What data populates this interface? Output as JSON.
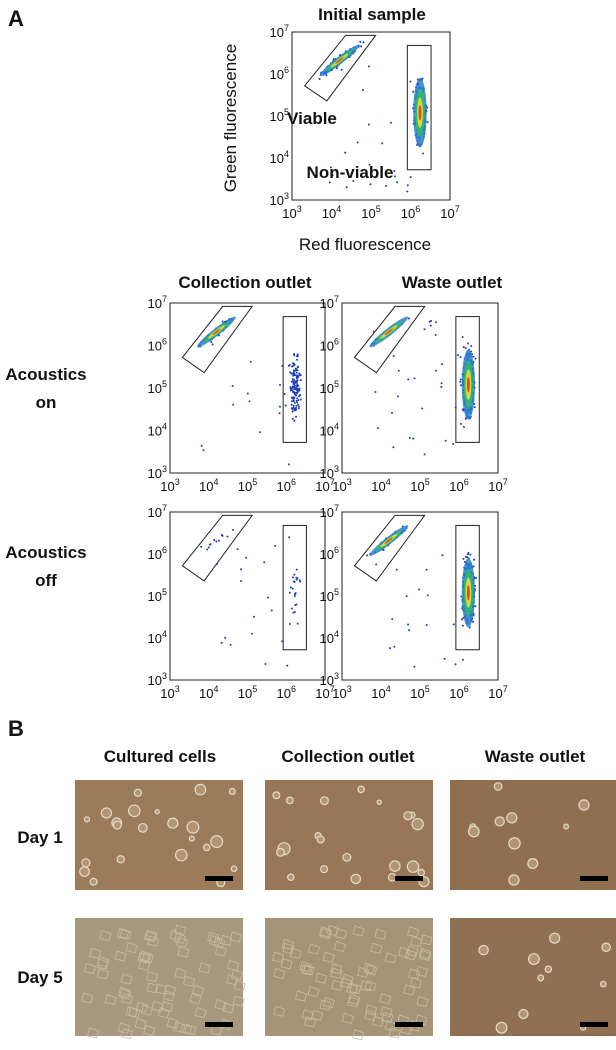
{
  "panel_a": {
    "label": "A",
    "initial": {
      "title": "Initial sample",
      "x_label": "Red fluorescence",
      "y_label": "Green fluorescence",
      "gate_labels": [
        "Viable",
        "Non-viable"
      ]
    },
    "column_titles": [
      "Collection outlet",
      "Waste outlet"
    ],
    "row_labels": [
      [
        "Acoustics",
        "on"
      ],
      [
        "Acoustics",
        "off"
      ]
    ],
    "tick_base": "10",
    "tick_exponents": [
      "3",
      "4",
      "5",
      "6",
      "7"
    ]
  },
  "panel_b": {
    "label": "B",
    "column_titles": [
      "Cultured cells",
      "Collection outlet",
      "Waste outlet"
    ],
    "row_labels": [
      "Day 1",
      "Day 5"
    ]
  }
}
